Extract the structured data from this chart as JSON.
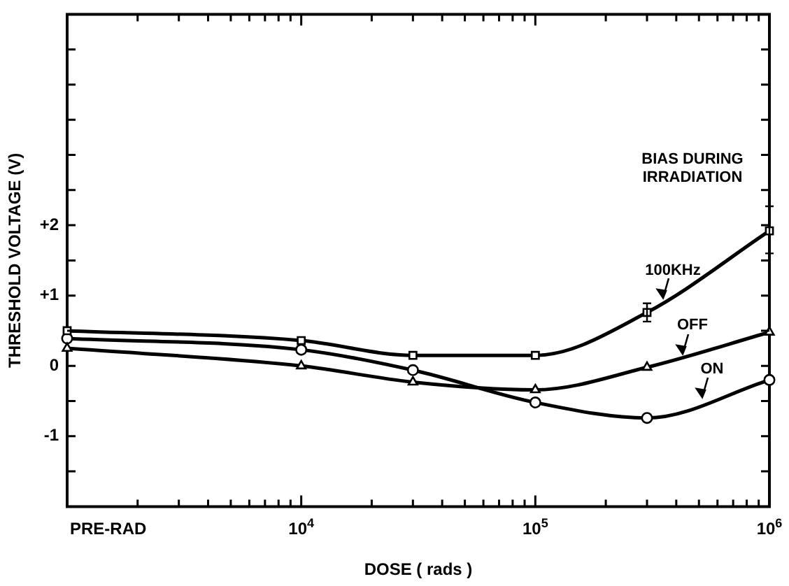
{
  "chart_data": {
    "type": "line",
    "xlabel": "DOSE ( rads )",
    "ylabel": "THRESHOLD VOLTAGE (V)",
    "legend_title": "BIAS DURING IRRADIATION",
    "x": [
      1000,
      10000,
      30000,
      100000,
      300000,
      1000000
    ],
    "series": [
      {
        "name": "100KHz",
        "color": "#000000",
        "marker": "square",
        "values": [
          0.5,
          0.36,
          0.15,
          0.15,
          0.76,
          1.92
        ],
        "errors": [
          null,
          null,
          null,
          null,
          0.13,
          [
            1.6,
            2.27
          ]
        ]
      },
      {
        "name": "OFF",
        "color": "#000000",
        "marker": "triangle",
        "values": [
          0.25,
          0,
          -0.23,
          -0.34,
          -0.02,
          0.48
        ]
      },
      {
        "name": "ON",
        "color": "#000000",
        "marker": "circle",
        "values": [
          0.39,
          0.23,
          -0.06,
          -0.52,
          -0.74,
          -0.2
        ]
      }
    ],
    "log": "x",
    "grid": false,
    "legend": "right",
    "line_style": "solid",
    "xlim": [
      1000,
      1000000
    ],
    "xticks": [
      {
        "value": 1000,
        "label": "PRE-RAD"
      },
      {
        "value": 2000,
        "label": null
      },
      {
        "value": 3000,
        "label": null
      },
      {
        "value": 4000,
        "label": null
      },
      {
        "value": 5000,
        "label": null
      },
      {
        "value": 6000,
        "label": null
      },
      {
        "value": 7000,
        "label": null
      },
      {
        "value": 8000,
        "label": null
      },
      {
        "value": 9000,
        "label": null
      },
      {
        "value": 10000,
        "label": "10$^{4}$"
      },
      {
        "value": 20000,
        "label": null
      },
      {
        "value": 30000,
        "label": null
      },
      {
        "value": 40000,
        "label": null
      },
      {
        "value": 50000,
        "label": null
      },
      {
        "value": 60000,
        "label": null
      },
      {
        "value": 70000,
        "label": null
      },
      {
        "value": 80000,
        "label": null
      },
      {
        "value": 90000,
        "label": null
      },
      {
        "value": 100000,
        "label": "10$^{5}$"
      },
      {
        "value": 200000,
        "label": null
      },
      {
        "value": 300000,
        "label": null
      },
      {
        "value": 400000,
        "label": null
      },
      {
        "value": 500000,
        "label": null
      },
      {
        "value": 600000,
        "label": null
      },
      {
        "value": 700000,
        "label": null
      },
      {
        "value": 800000,
        "label": null
      },
      {
        "value": 900000,
        "label": null
      },
      {
        "value": 1000000,
        "label": "10$^{6}$"
      }
    ],
    "ylim": [
      -2,
      5
    ],
    "yticks": [
      {
        "value": -1.5,
        "label": null
      },
      -1,
      {
        "value": -0.5,
        "label": null
      },
      0,
      {
        "value": 0.5,
        "label": null
      },
      {
        "value": 1,
        "label": "+1"
      },
      {
        "value": 1.5,
        "label": null
      },
      {
        "value": 2,
        "label": "+2"
      },
      {
        "value": 2.5,
        "label": null
      },
      {
        "value": 3,
        "label": null
      },
      {
        "value": 3.5,
        "label": null
      },
      {
        "value": 4,
        "label": null
      },
      {
        "value": 4.5,
        "label": null
      }
    ]
  }
}
